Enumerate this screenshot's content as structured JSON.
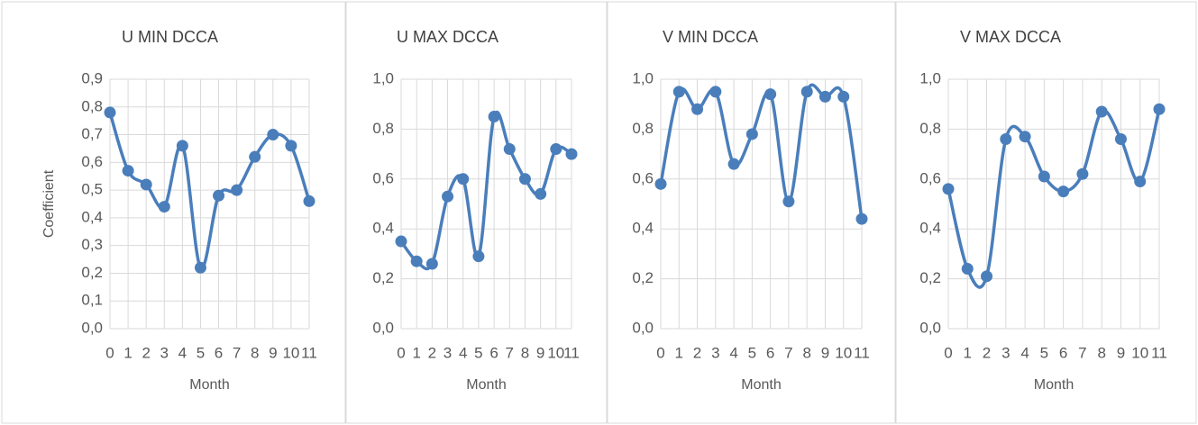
{
  "chart_data": [
    {
      "type": "line",
      "title": "U MIN DCCA",
      "x_label": "Month",
      "y_label": "Coefficient",
      "categories": [
        0,
        1,
        2,
        3,
        4,
        5,
        6,
        7,
        8,
        9,
        10,
        11
      ],
      "series": [
        {
          "color": "#4a7ebb",
          "values": [
            0.78,
            0.57,
            0.52,
            0.44,
            0.66,
            0.22,
            0.48,
            0.5,
            0.62,
            0.7,
            0.66,
            0.46
          ]
        }
      ],
      "ylim": [
        0,
        0.9
      ],
      "yticks": [
        {
          "value": 0,
          "label": "0,0"
        },
        {
          "value": 0.1,
          "label": "0,1"
        },
        {
          "value": 0.2,
          "label": "0,2"
        },
        {
          "value": 0.3,
          "label": "0,3"
        },
        {
          "value": 0.4,
          "label": "0,4"
        },
        {
          "value": 0.5,
          "label": "0,5"
        },
        {
          "value": 0.6,
          "label": "0,6"
        },
        {
          "value": 0.7,
          "label": "0,7"
        },
        {
          "value": 0.8,
          "label": "0,8"
        },
        {
          "value": 0.9,
          "label": "0,9"
        }
      ],
      "grid": true
    },
    {
      "type": "line",
      "title": "U MAX DCCA",
      "x_label": "Month",
      "categories": [
        0,
        1,
        2,
        3,
        4,
        5,
        6,
        7,
        8,
        9,
        10,
        11
      ],
      "series": [
        {
          "color": "#4a7ebb",
          "values": [
            0.35,
            0.27,
            0.26,
            0.53,
            0.6,
            0.29,
            0.85,
            0.72,
            0.6,
            0.54,
            0.72,
            0.7
          ]
        }
      ],
      "ylim": [
        0,
        1
      ],
      "yticks": [
        {
          "value": 0,
          "label": "0,0"
        },
        {
          "value": 0.2,
          "label": "0,2"
        },
        {
          "value": 0.4,
          "label": "0,4"
        },
        {
          "value": 0.6,
          "label": "0,6"
        },
        {
          "value": 0.8,
          "label": "0,8"
        },
        {
          "value": 1,
          "label": "1,0"
        }
      ],
      "grid": true
    },
    {
      "type": "line",
      "title": "V MIN DCCA",
      "x_label": "Month",
      "categories": [
        0,
        1,
        2,
        3,
        4,
        5,
        6,
        7,
        8,
        9,
        10,
        11
      ],
      "series": [
        {
          "color": "#4a7ebb",
          "values": [
            0.58,
            0.95,
            0.88,
            0.95,
            0.66,
            0.78,
            0.94,
            0.51,
            0.95,
            0.93,
            0.93,
            0.44
          ]
        }
      ],
      "ylim": [
        0,
        1
      ],
      "yticks": [
        {
          "value": 0,
          "label": "0,0"
        },
        {
          "value": 0.2,
          "label": "0,2"
        },
        {
          "value": 0.4,
          "label": "0,4"
        },
        {
          "value": 0.6,
          "label": "0,6"
        },
        {
          "value": 0.8,
          "label": "0,8"
        },
        {
          "value": 1,
          "label": "1,0"
        }
      ],
      "grid": true
    },
    {
      "type": "line",
      "title": "V MAX DCCA",
      "x_label": "Month",
      "categories": [
        0,
        1,
        2,
        3,
        4,
        5,
        6,
        7,
        8,
        9,
        10,
        11
      ],
      "series": [
        {
          "color": "#4a7ebb",
          "values": [
            0.56,
            0.24,
            0.21,
            0.76,
            0.77,
            0.61,
            0.55,
            0.62,
            0.87,
            0.76,
            0.59,
            0.88
          ]
        }
      ],
      "ylim": [
        0,
        1
      ],
      "yticks": [
        {
          "value": 0,
          "label": "0,0"
        },
        {
          "value": 0.2,
          "label": "0,2"
        },
        {
          "value": 0.4,
          "label": "0,4"
        },
        {
          "value": 0.6,
          "label": "0,6"
        },
        {
          "value": 0.8,
          "label": "0,8"
        },
        {
          "value": 1,
          "label": "1,0"
        }
      ],
      "grid": true
    }
  ]
}
